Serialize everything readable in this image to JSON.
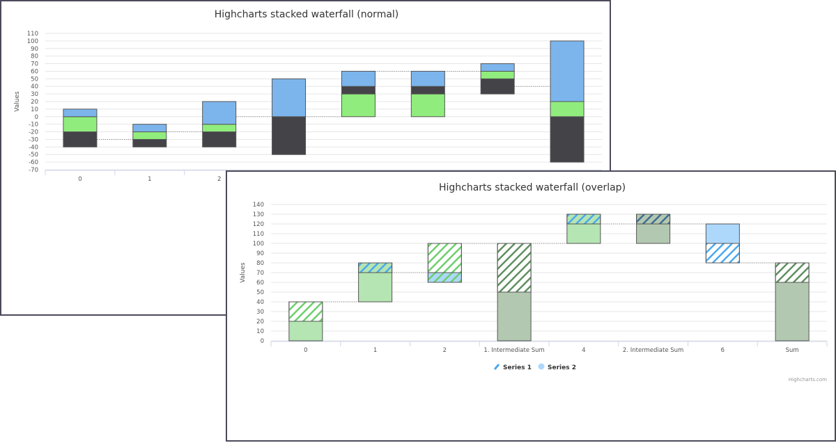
{
  "chart_data": [
    {
      "type": "bar",
      "title": "Highcharts stacked waterfall (normal)",
      "ylabel": "Values",
      "ylim": [
        -70,
        110
      ],
      "ytick_step": 10,
      "grid": true,
      "categories": [
        "0",
        "1",
        "2",
        "",
        "",
        "",
        "",
        ""
      ],
      "colors": {
        "dark": "#434348",
        "green": "#90ed7d",
        "blue": "#7cb5ec"
      },
      "bars": [
        {
          "segments": [
            {
              "from": -40,
              "to": -20,
              "color": "dark"
            },
            {
              "from": -20,
              "to": 0,
              "color": "green"
            },
            {
              "from": 0,
              "to": 10,
              "color": "blue"
            }
          ]
        },
        {
          "segments": [
            {
              "from": -40,
              "to": -30,
              "color": "dark"
            },
            {
              "from": -30,
              "to": -20,
              "color": "green"
            },
            {
              "from": -20,
              "to": -10,
              "color": "blue"
            }
          ]
        },
        {
          "segments": [
            {
              "from": -40,
              "to": -20,
              "color": "dark"
            },
            {
              "from": -20,
              "to": -10,
              "color": "green"
            },
            {
              "from": -10,
              "to": 20,
              "color": "blue"
            }
          ]
        },
        {
          "segments": [
            {
              "from": -50,
              "to": 0,
              "color": "dark"
            },
            {
              "from": 0,
              "to": 50,
              "color": "blue"
            }
          ]
        },
        {
          "segments": [
            {
              "from": 0,
              "to": 30,
              "color": "green"
            },
            {
              "from": 30,
              "to": 40,
              "color": "dark"
            },
            {
              "from": 40,
              "to": 60,
              "color": "blue"
            }
          ]
        },
        {
          "segments": [
            {
              "from": 0,
              "to": 30,
              "color": "green"
            },
            {
              "from": 30,
              "to": 40,
              "color": "dark"
            },
            {
              "from": 40,
              "to": 60,
              "color": "blue"
            }
          ]
        },
        {
          "segments": [
            {
              "from": 30,
              "to": 50,
              "color": "dark"
            },
            {
              "from": 50,
              "to": 60,
              "color": "green"
            },
            {
              "from": 60,
              "to": 70,
              "color": "blue"
            }
          ]
        },
        {
          "segments": [
            {
              "from": -60,
              "to": 0,
              "color": "dark"
            },
            {
              "from": 0,
              "to": 20,
              "color": "green"
            },
            {
              "from": 20,
              "to": 100,
              "color": "blue"
            }
          ]
        }
      ],
      "connectors": [
        -30,
        -20,
        0,
        0,
        60,
        60,
        40
      ]
    },
    {
      "type": "bar",
      "title": "Highcharts stacked waterfall (overlap)",
      "ylabel": "Values",
      "ylim": [
        0,
        140
      ],
      "ytick_step": 10,
      "grid": true,
      "categories": [
        "0",
        "1",
        "2",
        "1. Intermediate Sum",
        "4",
        "2. Intermediate Sum",
        "6",
        "Sum"
      ],
      "legend": {
        "position": "bottom",
        "items": [
          {
            "name": "Series 1",
            "icon": "hatch-line"
          },
          {
            "name": "Series 2",
            "icon": "circle",
            "color": "#aed8fb"
          }
        ]
      },
      "fills": {
        "green": "#b5e5b2",
        "darkgreen": "#b3c8b0",
        "blue": "#aed8fb",
        "none": "#ffffff"
      },
      "hatches": {
        "green": "#6ccf6a",
        "blue": "#4aa8ef",
        "darkgreen": "#5e8f5e",
        "darkblue": "#3f6e92"
      },
      "bars": [
        {
          "segments": [
            {
              "from": 0,
              "to": 20,
              "fill": "green"
            },
            {
              "from": 20,
              "to": 40,
              "fill": "none",
              "hatch": "green"
            }
          ]
        },
        {
          "segments": [
            {
              "from": 40,
              "to": 70,
              "fill": "green"
            },
            {
              "from": 70,
              "to": 80,
              "fill": "green",
              "hatch": "blue"
            }
          ]
        },
        {
          "segments": [
            {
              "from": 60,
              "to": 70,
              "fill": "blue",
              "hatch": "green"
            },
            {
              "from": 70,
              "to": 100,
              "fill": "none",
              "hatch": "green"
            }
          ]
        },
        {
          "segments": [
            {
              "from": 0,
              "to": 50,
              "fill": "darkgreen"
            },
            {
              "from": 50,
              "to": 100,
              "fill": "none",
              "hatch": "darkgreen"
            }
          ]
        },
        {
          "segments": [
            {
              "from": 100,
              "to": 120,
              "fill": "green"
            },
            {
              "from": 120,
              "to": 130,
              "fill": "green",
              "hatch": "blue"
            }
          ]
        },
        {
          "segments": [
            {
              "from": 100,
              "to": 120,
              "fill": "darkgreen"
            },
            {
              "from": 120,
              "to": 130,
              "fill": "darkgreen",
              "hatch": "darkblue"
            }
          ]
        },
        {
          "segments": [
            {
              "from": 100,
              "to": 120,
              "fill": "blue"
            },
            {
              "from": 80,
              "to": 100,
              "fill": "none",
              "hatch": "blue"
            }
          ]
        },
        {
          "segments": [
            {
              "from": 0,
              "to": 60,
              "fill": "darkgreen"
            },
            {
              "from": 60,
              "to": 80,
              "fill": "none",
              "hatch": "darkgreen"
            }
          ]
        }
      ],
      "connectors": [
        40,
        70,
        100,
        100,
        120,
        120,
        80
      ],
      "credits": "Highcharts.com"
    }
  ]
}
